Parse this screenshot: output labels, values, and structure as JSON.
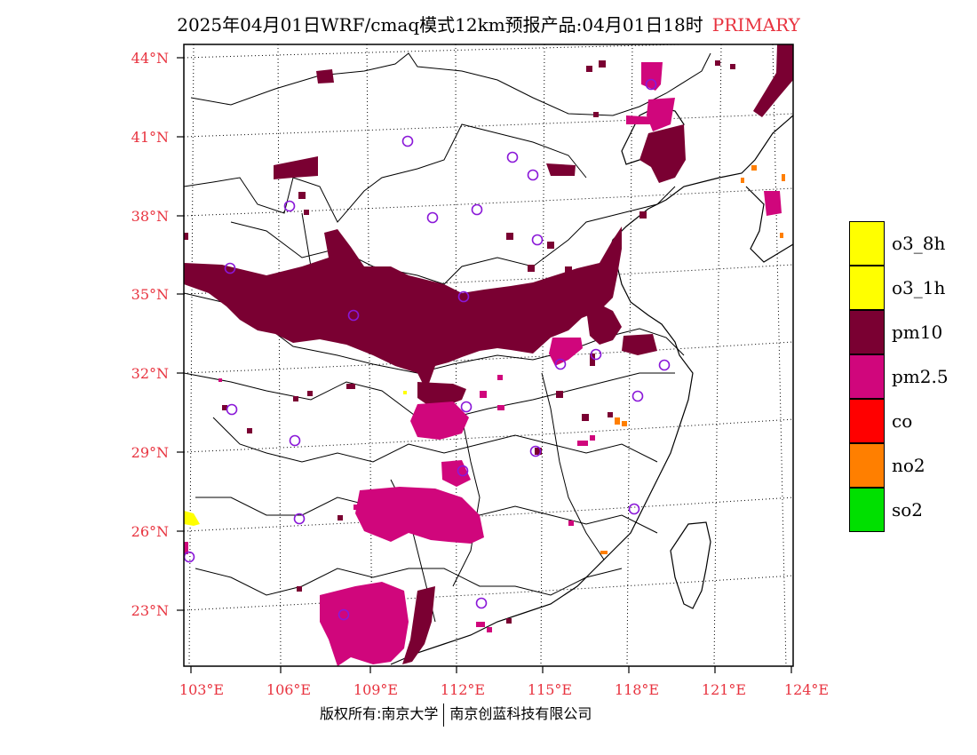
{
  "title": "2025年04月01日WRF/cmaq模式12km预报产品:04月01日18时",
  "title_tag": "PRIMARY",
  "latitude_labels": [
    "44°N",
    "41°N",
    "38°N",
    "35°N",
    "32°N",
    "29°N",
    "26°N",
    "23°N"
  ],
  "longitude_labels": [
    "103°E",
    "106°E",
    "109°E",
    "112°E",
    "115°E",
    "118°E",
    "121°E",
    "124°E"
  ],
  "legend": [
    {
      "label": "o3_8h",
      "color": "#ffff00"
    },
    {
      "label": "o3_1h",
      "color": "#ffff00"
    },
    {
      "label": "pm10",
      "color": "#7a0032"
    },
    {
      "label": "pm2.5",
      "color": "#d0067c"
    },
    {
      "label": "co",
      "color": "#ff0000"
    },
    {
      "label": "no2",
      "color": "#ff7f00"
    },
    {
      "label": "so2",
      "color": "#00e000"
    }
  ],
  "footer": {
    "left": "版权所有:南京大学",
    "right": "南京创蓝科技有限公司"
  },
  "colors": {
    "pm10": "#7a0032",
    "pm25": "#d0067c",
    "station": "#8a18d8",
    "label": "#e8333f"
  }
}
